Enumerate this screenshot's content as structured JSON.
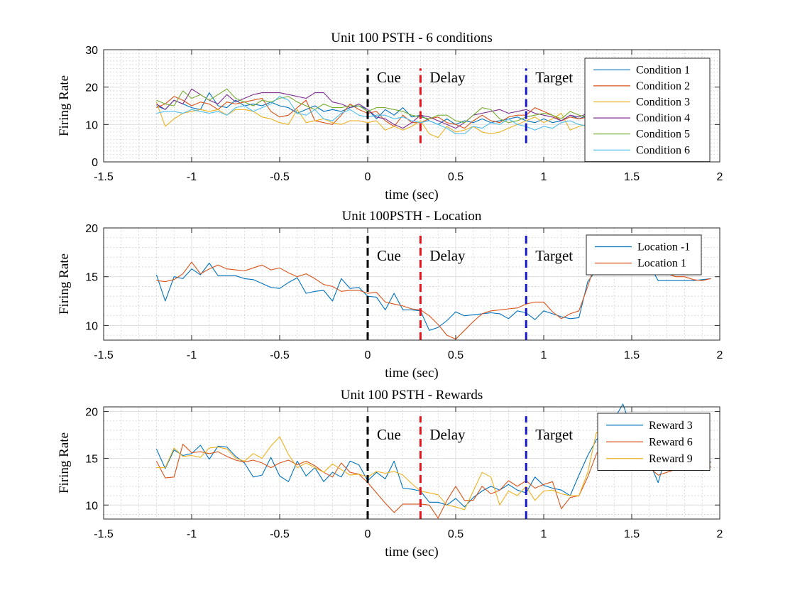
{
  "colors": [
    "#0072BD",
    "#D95319",
    "#EDB120",
    "#7E2F8E",
    "#77AC30",
    "#4DBEEE"
  ],
  "event_markers": [
    {
      "x": 0,
      "label": "Cue",
      "color": "#000000"
    },
    {
      "x": 0.3,
      "label": "Delay",
      "color": "#E8141B"
    },
    {
      "x": 0.9,
      "label": "Target",
      "color": "#1818C8"
    }
  ],
  "chart_data": [
    {
      "type": "line",
      "title": "Unit 100 PSTH - 6 conditions",
      "xlabel": "time (sec)",
      "ylabel": "Firing Rate",
      "xlim": [
        -1.5,
        2
      ],
      "ylim": [
        0,
        30
      ],
      "xticks": [
        -1.5,
        -1,
        -0.5,
        0,
        0.5,
        1,
        1.5,
        2
      ],
      "xtick_labels": [
        "-1.5",
        "-1",
        "-0.5",
        "0",
        "0.5",
        "1",
        "1.5",
        "2"
      ],
      "yticks": [
        0,
        10,
        20,
        30
      ],
      "ytick_labels": [
        "0",
        "10",
        "20",
        "30"
      ],
      "grid": true,
      "legend_position": "top-right",
      "event_y": [
        5,
        25
      ],
      "x": [
        -1.2,
        -1.15,
        -1.1,
        -1.05,
        -1.0,
        -0.95,
        -0.9,
        -0.85,
        -0.8,
        -0.75,
        -0.7,
        -0.65,
        -0.6,
        -0.55,
        -0.5,
        -0.45,
        -0.4,
        -0.35,
        -0.3,
        -0.25,
        -0.2,
        -0.15,
        -0.1,
        -0.05,
        0.0,
        0.05,
        0.1,
        0.15,
        0.2,
        0.25,
        0.3,
        0.35,
        0.4,
        0.45,
        0.5,
        0.55,
        0.6,
        0.65,
        0.7,
        0.75,
        0.8,
        0.85,
        0.9,
        0.95,
        1.0,
        1.05,
        1.1,
        1.15,
        1.2,
        1.25
      ],
      "series": [
        {
          "name": "Condition 1",
          "values": [
            15.0,
            14.0,
            16.5,
            15.5,
            14.5,
            14.0,
            18.5,
            15.0,
            14.5,
            16.5,
            15.0,
            15.5,
            15.0,
            16.0,
            15.0,
            14.5,
            13.0,
            14.0,
            15.0,
            13.5,
            14.0,
            13.5,
            14.5,
            15.0,
            14.0,
            11.5,
            14.0,
            12.5,
            14.5,
            12.0,
            12.5,
            11.0,
            10.0,
            11.5,
            10.0,
            11.0,
            10.5,
            11.5,
            10.5,
            11.0,
            11.5,
            12.0,
            11.0,
            10.5,
            11.5,
            10.5,
            11.0,
            12.5,
            11.5,
            12.5
          ]
        },
        {
          "name": "Condition 2",
          "values": [
            14.5,
            15.5,
            17.5,
            16.5,
            15.0,
            16.0,
            15.5,
            14.0,
            16.0,
            15.5,
            16.0,
            16.5,
            17.0,
            13.5,
            12.0,
            12.5,
            14.5,
            16.5,
            11.0,
            10.5,
            10.0,
            12.5,
            15.5,
            14.0,
            13.0,
            13.5,
            11.0,
            9.5,
            12.5,
            10.5,
            10.5,
            11.5,
            12.0,
            10.5,
            10.0,
            9.0,
            11.0,
            12.5,
            11.0,
            10.5,
            12.0,
            12.5,
            12.5,
            14.5,
            13.5,
            12.5,
            11.0,
            12.0,
            11.5,
            12.0
          ]
        },
        {
          "name": "Condition 3",
          "values": [
            16.0,
            9.5,
            11.5,
            13.0,
            13.5,
            14.0,
            13.5,
            14.0,
            12.5,
            14.0,
            14.0,
            13.5,
            12.0,
            11.5,
            10.5,
            10.0,
            14.0,
            10.5,
            11.0,
            11.5,
            10.5,
            10.0,
            11.0,
            11.0,
            10.5,
            11.0,
            8.5,
            9.5,
            8.5,
            9.5,
            11.0,
            7.5,
            6.5,
            9.5,
            8.0,
            8.5,
            9.5,
            8.0,
            7.5,
            8.0,
            9.0,
            10.0,
            11.0,
            12.0,
            10.5,
            11.5,
            13.0,
            8.5,
            9.5,
            10.0
          ]
        },
        {
          "name": "Condition 4",
          "values": [
            15.5,
            14.0,
            16.5,
            15.5,
            19.5,
            18.0,
            16.5,
            15.5,
            18.0,
            16.0,
            17.0,
            18.0,
            18.5,
            18.5,
            18.5,
            18.0,
            17.5,
            17.0,
            18.5,
            18.5,
            16.0,
            15.5,
            14.5,
            15.5,
            14.0,
            12.0,
            11.5,
            10.0,
            9.0,
            10.5,
            12.5,
            12.0,
            11.0,
            10.0,
            9.0,
            10.5,
            12.5,
            13.0,
            13.5,
            14.0,
            13.0,
            13.5,
            14.0,
            13.0,
            12.5,
            12.0,
            11.0,
            12.5,
            12.0,
            13.0
          ]
        },
        {
          "name": "Condition 5",
          "values": [
            16.5,
            15.5,
            15.0,
            19.0,
            17.0,
            18.0,
            16.5,
            18.0,
            19.5,
            17.0,
            16.0,
            15.0,
            16.5,
            16.0,
            17.0,
            17.5,
            16.0,
            15.0,
            14.0,
            15.5,
            14.5,
            14.5,
            15.0,
            15.0,
            13.5,
            14.5,
            14.5,
            14.0,
            13.5,
            12.5,
            12.0,
            11.5,
            12.5,
            12.5,
            11.0,
            10.5,
            12.5,
            14.5,
            14.0,
            11.5,
            10.5,
            11.0,
            12.0,
            12.5,
            13.0,
            12.5,
            11.5,
            13.5,
            12.5,
            12.0
          ]
        },
        {
          "name": "Condition 6",
          "values": [
            13.0,
            13.5,
            13.5,
            13.0,
            14.0,
            13.5,
            13.0,
            13.5,
            12.5,
            14.5,
            15.0,
            13.5,
            14.5,
            15.5,
            17.5,
            16.5,
            13.0,
            12.5,
            14.0,
            11.5,
            11.0,
            13.0,
            14.0,
            12.5,
            12.0,
            12.5,
            12.5,
            11.5,
            12.0,
            11.0,
            10.5,
            11.0,
            10.0,
            9.0,
            7.5,
            7.5,
            9.5,
            9.0,
            10.5,
            10.0,
            11.5,
            10.0,
            9.5,
            8.5,
            9.5,
            9.0,
            10.5,
            11.0,
            10.0,
            9.5
          ]
        }
      ]
    },
    {
      "type": "line",
      "title": "Unit 100PSTH - Location",
      "xlabel": "time (sec)",
      "ylabel": "Firing Rate",
      "xlim": [
        -1.5,
        2
      ],
      "ylim": [
        8.5,
        20
      ],
      "xticks": [
        -1.5,
        -1,
        -0.5,
        0,
        0.5,
        1,
        1.5,
        2
      ],
      "xtick_labels": [
        "-1.5",
        "-1",
        "-0.5",
        "0",
        "0.5",
        "1",
        "1.5",
        "2"
      ],
      "yticks": [
        10,
        15,
        20
      ],
      "ytick_labels": [
        "10",
        "15",
        "20"
      ],
      "grid": true,
      "legend_position": "top-right",
      "event_y": [
        8.5,
        19.2
      ],
      "x": [
        -1.2,
        -1.15,
        -1.1,
        -1.05,
        -1.0,
        -0.95,
        -0.9,
        -0.85,
        -0.8,
        -0.75,
        -0.7,
        -0.65,
        -0.6,
        -0.55,
        -0.5,
        -0.45,
        -0.4,
        -0.35,
        -0.3,
        -0.25,
        -0.2,
        -0.15,
        -0.1,
        -0.05,
        0.0,
        0.05,
        0.1,
        0.15,
        0.2,
        0.25,
        0.3,
        0.35,
        0.4,
        0.45,
        0.5,
        0.55,
        0.6,
        0.65,
        0.7,
        0.75,
        0.8,
        0.85,
        0.9,
        0.95,
        1.0,
        1.05,
        1.1,
        1.15,
        1.2,
        1.25,
        1.3,
        1.35,
        1.4,
        1.45,
        1.5,
        1.55,
        1.6,
        1.65,
        1.7,
        1.75,
        1.8,
        1.85,
        1.9,
        1.95
      ],
      "series": [
        {
          "name": "Location -1",
          "values": [
            15.2,
            12.5,
            15.0,
            14.8,
            15.8,
            15.2,
            16.4,
            15.1,
            15.1,
            15.1,
            14.8,
            14.7,
            14.3,
            13.9,
            13.8,
            14.4,
            14.9,
            13.3,
            13.5,
            13.6,
            12.5,
            14.8,
            13.8,
            13.9,
            13.0,
            12.9,
            11.6,
            13.3,
            11.6,
            11.6,
            11.5,
            9.5,
            9.8,
            10.5,
            11.4,
            11.0,
            11.1,
            11.2,
            11.3,
            11.2,
            10.7,
            11.5,
            11.3,
            10.6,
            11.5,
            11.2,
            10.9,
            10.7,
            10.8,
            14.5,
            15.7,
            16.5,
            16.0,
            16.0,
            16.5,
            16.6,
            16.2,
            14.6,
            14.6,
            14.6,
            14.6,
            14.6,
            14.7,
            14.8
          ]
        },
        {
          "name": "Location 1",
          "values": [
            14.6,
            14.5,
            14.7,
            15.3,
            16.5,
            15.3,
            15.8,
            16.2,
            15.8,
            15.7,
            15.6,
            15.9,
            16.2,
            15.7,
            15.9,
            15.4,
            15.0,
            15.3,
            14.8,
            14.2,
            14.0,
            13.5,
            13.6,
            13.6,
            13.3,
            13.4,
            12.4,
            12.2,
            12.0,
            11.7,
            11.6,
            11.0,
            10.1,
            9.0,
            8.6,
            9.5,
            10.4,
            11.2,
            11.5,
            11.6,
            11.7,
            11.8,
            12.2,
            12.4,
            12.4,
            11.4,
            10.7,
            11.2,
            11.5,
            14.0,
            16.8,
            16.7,
            16.5,
            16.4,
            16.8,
            17.0,
            16.5,
            15.8,
            15.3,
            15.0,
            15.0,
            14.7,
            14.6,
            14.8
          ]
        }
      ]
    },
    {
      "type": "line",
      "title": "Unit 100 PSTH - Rewards",
      "xlabel": "time (sec)",
      "ylabel": "Firing Rate",
      "xlim": [
        -1.5,
        2
      ],
      "ylim": [
        8.5,
        20.5
      ],
      "xticks": [
        -1.5,
        -1,
        -0.5,
        0,
        0.5,
        1,
        1.5,
        2
      ],
      "xtick_labels": [
        "-1.5",
        "-1",
        "-0.5",
        "0",
        "0.5",
        "1",
        "1.5",
        "2"
      ],
      "yticks": [
        10,
        15,
        20
      ],
      "ytick_labels": [
        "10",
        "15",
        "20"
      ],
      "grid": true,
      "legend_position": "top-right",
      "event_y": [
        8.5,
        19.5
      ],
      "x": [
        -1.2,
        -1.15,
        -1.1,
        -1.05,
        -1.0,
        -0.95,
        -0.9,
        -0.85,
        -0.8,
        -0.75,
        -0.7,
        -0.65,
        -0.6,
        -0.55,
        -0.5,
        -0.45,
        -0.4,
        -0.35,
        -0.3,
        -0.25,
        -0.2,
        -0.15,
        -0.1,
        -0.05,
        0.0,
        0.05,
        0.1,
        0.15,
        0.2,
        0.25,
        0.3,
        0.35,
        0.4,
        0.45,
        0.5,
        0.55,
        0.6,
        0.65,
        0.7,
        0.75,
        0.8,
        0.85,
        0.9,
        0.95,
        1.0,
        1.05,
        1.1,
        1.15,
        1.2,
        1.25,
        1.3,
        1.35,
        1.4,
        1.45,
        1.5,
        1.55,
        1.6,
        1.65,
        1.7,
        1.75,
        1.8,
        1.85,
        1.9,
        1.95
      ],
      "series": [
        {
          "name": "Reward 3",
          "values": [
            16.0,
            13.9,
            15.9,
            15.3,
            15.5,
            16.4,
            14.9,
            16.3,
            16.2,
            15.2,
            14.5,
            13.0,
            13.2,
            15.1,
            13.1,
            12.5,
            14.7,
            13.1,
            14.0,
            12.5,
            13.5,
            13.0,
            14.7,
            14.3,
            12.6,
            13.5,
            12.8,
            14.7,
            11.8,
            11.7,
            11.5,
            10.3,
            10.3,
            10.0,
            10.7,
            9.8,
            10.8,
            11.5,
            12.0,
            11.6,
            12.2,
            11.6,
            11.3,
            13.0,
            12.1,
            11.8,
            11.6,
            11.0,
            13.2,
            15.3,
            17.0,
            18.0,
            19.2,
            20.8,
            18.0,
            16.0,
            14.6,
            12.4,
            15.6,
            15.0,
            14.8,
            14.7,
            14.7,
            14.6
          ]
        },
        {
          "name": "Reward 6",
          "values": [
            14.7,
            12.9,
            13.0,
            16.5,
            15.6,
            15.7,
            15.5,
            15.7,
            15.2,
            14.8,
            14.6,
            14.8,
            14.5,
            14.0,
            14.5,
            14.8,
            14.3,
            14.7,
            14.2,
            13.5,
            13.0,
            14.5,
            13.5,
            13.3,
            12.4,
            11.3,
            10.2,
            9.2,
            10.1,
            10.1,
            10.1,
            10.0,
            8.6,
            10.5,
            12.0,
            10.5,
            10.5,
            12.0,
            11.2,
            11.6,
            12.6,
            12.0,
            12.6,
            11.8,
            12.2,
            12.5,
            9.6,
            10.8,
            11.0,
            13.0,
            15.5,
            16.5,
            17.3,
            16.0,
            15.5,
            15.5,
            14.0,
            13.2,
            13.5,
            13.8,
            14.0,
            14.2,
            14.0,
            14.1
          ]
        },
        {
          "name": "Reward 9",
          "values": [
            14.0,
            14.0,
            16.1,
            15.2,
            15.3,
            15.1,
            16.1,
            16.2,
            16.0,
            15.0,
            14.7,
            15.5,
            15.0,
            16.3,
            17.3,
            15.4,
            14.0,
            14.5,
            14.0,
            13.5,
            14.4,
            13.8,
            13.2,
            13.3,
            13.0,
            13.6,
            13.4,
            13.6,
            13.2,
            12.3,
            11.5,
            11.3,
            11.1,
            10.0,
            9.8,
            9.5,
            11.5,
            13.5,
            13.0,
            10.0,
            11.5,
            11.0,
            12.0,
            10.5,
            11.5,
            11.6,
            11.2,
            11.0,
            11.0,
            13.5,
            17.8,
            17.3,
            16.5,
            16.0,
            16.0,
            15.5,
            15.0,
            15.0,
            15.3,
            15.0,
            14.8,
            14.6,
            14.5,
            14.5
          ]
        }
      ]
    }
  ]
}
